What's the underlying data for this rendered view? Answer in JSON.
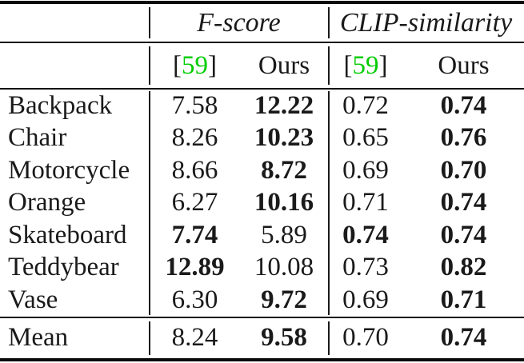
{
  "colors": {
    "citation_green": "#00CC00",
    "text": "#1a1a1a"
  },
  "table": {
    "header": {
      "groups": [
        {
          "label": "F-score"
        },
        {
          "label": "CLIP-similarity"
        }
      ]
    },
    "subheader": {
      "ref_open": "[",
      "ref_number": "59",
      "ref_close": "]",
      "ours": "Ours"
    },
    "rows": [
      {
        "label": "Backpack",
        "f_ref": "7.58",
        "f_ref_bold": false,
        "f_ours": "12.22",
        "f_ours_bold": true,
        "c_ref": "0.72",
        "c_ref_bold": false,
        "c_ours": "0.74",
        "c_ours_bold": true
      },
      {
        "label": "Chair",
        "f_ref": "8.26",
        "f_ref_bold": false,
        "f_ours": "10.23",
        "f_ours_bold": true,
        "c_ref": "0.65",
        "c_ref_bold": false,
        "c_ours": "0.76",
        "c_ours_bold": true
      },
      {
        "label": "Motorcycle",
        "f_ref": "8.66",
        "f_ref_bold": false,
        "f_ours": "8.72",
        "f_ours_bold": true,
        "c_ref": "0.69",
        "c_ref_bold": false,
        "c_ours": "0.70",
        "c_ours_bold": true
      },
      {
        "label": "Orange",
        "f_ref": "6.27",
        "f_ref_bold": false,
        "f_ours": "10.16",
        "f_ours_bold": true,
        "c_ref": "0.71",
        "c_ref_bold": false,
        "c_ours": "0.74",
        "c_ours_bold": true
      },
      {
        "label": "Skateboard",
        "f_ref": "7.74",
        "f_ref_bold": true,
        "f_ours": "5.89",
        "f_ours_bold": false,
        "c_ref": "0.74",
        "c_ref_bold": true,
        "c_ours": "0.74",
        "c_ours_bold": true
      },
      {
        "label": "Teddybear",
        "f_ref": "12.89",
        "f_ref_bold": true,
        "f_ours": "10.08",
        "f_ours_bold": false,
        "c_ref": "0.73",
        "c_ref_bold": false,
        "c_ours": "0.82",
        "c_ours_bold": true
      },
      {
        "label": "Vase",
        "f_ref": "6.30",
        "f_ref_bold": false,
        "f_ours": "9.72",
        "f_ours_bold": true,
        "c_ref": "0.69",
        "c_ref_bold": false,
        "c_ours": "0.71",
        "c_ours_bold": true
      }
    ],
    "mean": {
      "label": "Mean",
      "f_ref": "8.24",
      "f_ref_bold": false,
      "f_ours": "9.58",
      "f_ours_bold": true,
      "c_ref": "0.70",
      "c_ref_bold": false,
      "c_ours": "0.74",
      "c_ours_bold": true
    }
  }
}
